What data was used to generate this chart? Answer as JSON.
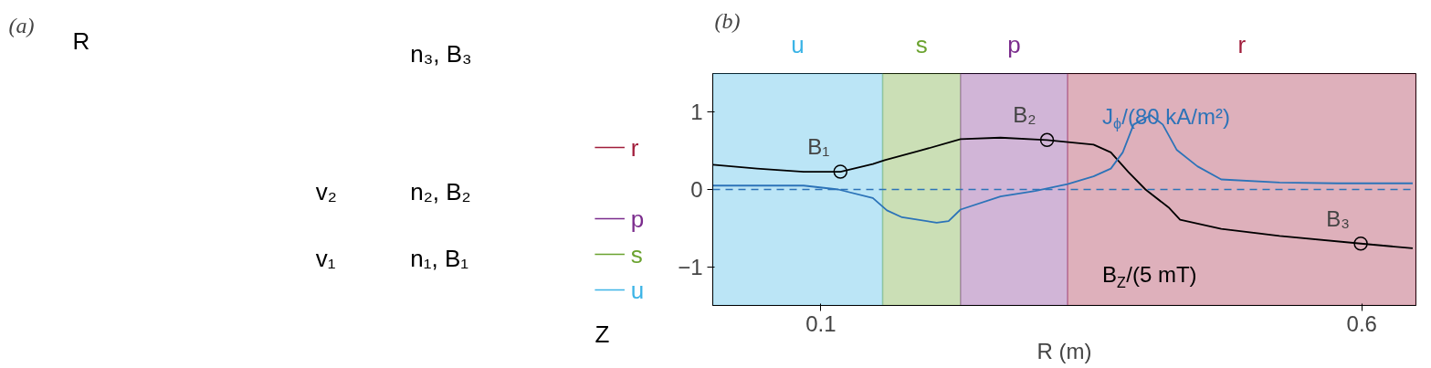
{
  "chart_data": [
    {
      "type": "other",
      "title": "(a)",
      "annotations": [
        "R",
        "Z",
        "n₃, B₃",
        "v₂",
        "n₂, B₂",
        "v₁",
        "n₁, B₁",
        "r",
        "p",
        "s",
        "u"
      ]
    },
    {
      "type": "line",
      "title": "(b)",
      "xlabel": "R (m)",
      "xlim": [
        0,
        0.65
      ],
      "xticks": [
        0.1,
        0.6
      ],
      "ylim": [
        -1.5,
        1.5
      ],
      "yticks": [
        -1,
        0,
        1
      ],
      "grid": false,
      "series": [
        {
          "name": "B$_{Z}$/(5 mT)",
          "color": "#000000",
          "x": [
            0,
            0.041,
            0.084,
            0.118,
            0.148,
            0.159,
            0.191,
            0.229,
            0.266,
            0.309,
            0.352,
            0.368,
            0.384,
            0.4,
            0.422,
            0.432,
            0.47,
            0.524,
            0.599,
            0.647
          ],
          "values": [
            0.32,
            0.27,
            0.23,
            0.23,
            0.33,
            0.38,
            0.5,
            0.65,
            0.67,
            0.64,
            0.58,
            0.48,
            0.23,
            0,
            -0.24,
            -0.39,
            -0.51,
            -0.6,
            -0.7,
            -0.76
          ]
        },
        {
          "name": "J$_{ϕ}$/(80 kA/m²)",
          "color": "#2c73b8",
          "x": [
            0,
            0.084,
            0.116,
            0.148,
            0.161,
            0.175,
            0.207,
            0.218,
            0.229,
            0.266,
            0.298,
            0.328,
            0.352,
            0.368,
            0.379,
            0.389,
            0.405,
            0.416,
            0.429,
            0.448,
            0.47,
            0.524,
            0.577,
            0.647
          ],
          "values": [
            0.05,
            0.05,
            0,
            -0.11,
            -0.27,
            -0.36,
            -0.43,
            -0.41,
            -0.26,
            -0.09,
            -0.02,
            0.07,
            0.17,
            0.27,
            0.48,
            0.84,
            0.96,
            0.84,
            0.51,
            0.3,
            0.13,
            0.09,
            0.08,
            0.08
          ]
        },
        {
          "type": "scatter",
          "marker": "circle",
          "color": "#000000",
          "x": [
            0.118,
            0.309,
            0.599
          ],
          "values": [
            0.23,
            0.64,
            -0.7
          ]
        }
      ],
      "annotations": [
        {
          "text": "B₁",
          "x": 0.118,
          "y": 0.23
        },
        {
          "text": "B₂",
          "x": 0.309,
          "y": 0.64
        },
        {
          "text": "B₃",
          "x": 0.599,
          "y": -0.7
        }
      ],
      "ref_lines": [
        {
          "axis": "y",
          "value": 0,
          "color": "#2c73b8",
          "line_style": "dashed"
        }
      ],
      "bands": [
        {
          "axis": "x",
          "from": 0,
          "to": 0.157,
          "label": "u",
          "color": "#3cb4e6"
        },
        {
          "axis": "x",
          "from": 0.157,
          "to": 0.229,
          "label": "s",
          "color": "#6aa22e"
        },
        {
          "axis": "x",
          "from": 0.229,
          "to": 0.328,
          "label": "p",
          "color": "#7b2c8d"
        },
        {
          "axis": "x",
          "from": 0.328,
          "to": 0.65,
          "label": "r",
          "color": "#a11d3b"
        }
      ]
    }
  ]
}
